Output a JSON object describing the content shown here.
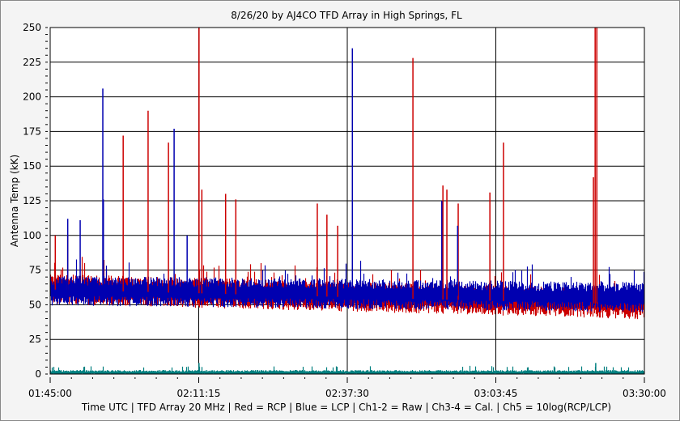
{
  "chart_data": {
    "type": "line",
    "title": "8/26/20  by  AJ4CO TFD Array  in  High Springs, FL",
    "ylabel": "Antenna Temp (kK)",
    "xlabel": "Time UTC | TFD Array 20 MHz | Red = RCP | Blue = LCP | Ch1-2 = Raw | Ch3-4 = Cal. | Ch5 = 10log(RCP/LCP)",
    "ylim": [
      0,
      250
    ],
    "yticks": [
      "0",
      "25",
      "50",
      "75",
      "100",
      "125",
      "150",
      "175",
      "200",
      "225",
      "250"
    ],
    "xlim_minutes": [
      0,
      105
    ],
    "xticks": [
      "01:45:00",
      "02:11:15",
      "02:37:30",
      "03:03:45",
      "03:30:00"
    ],
    "grid": true,
    "colors": {
      "rcp": "#cc0000",
      "lcp": "#0000b0",
      "ratio": "#008080"
    },
    "series": [
      {
        "name": "RCP",
        "color": "#cc0000",
        "baseline_start": 61,
        "baseline_end": 50,
        "spikes": [
          [
            0.9,
            100
          ],
          [
            3.1,
            100
          ],
          [
            12.9,
            172
          ],
          [
            17.3,
            190
          ],
          [
            20.9,
            167
          ],
          [
            26.3,
            250
          ],
          [
            26.8,
            133
          ],
          [
            31.0,
            130
          ],
          [
            32.8,
            126
          ],
          [
            47.2,
            123
          ],
          [
            48.9,
            115
          ],
          [
            50.8,
            107
          ],
          [
            64.1,
            228
          ],
          [
            69.4,
            136
          ],
          [
            70.1,
            133
          ],
          [
            72.1,
            123
          ],
          [
            77.7,
            131
          ],
          [
            80.1,
            167
          ],
          [
            96.0,
            142
          ],
          [
            96.3,
            250
          ],
          [
            96.6,
            250
          ]
        ]
      },
      {
        "name": "LCP",
        "color": "#0000b0",
        "baseline_start": 60,
        "baseline_end": 55,
        "spikes": [
          [
            3.1,
            112
          ],
          [
            5.3,
            111
          ],
          [
            9.3,
            206
          ],
          [
            9.4,
            126
          ],
          [
            21.9,
            177
          ],
          [
            24.2,
            100
          ],
          [
            53.4,
            235
          ],
          [
            69.2,
            125
          ],
          [
            72.0,
            107
          ]
        ]
      },
      {
        "name": "10log(RCP/LCP)",
        "color": "#008080",
        "baseline_start": 1,
        "baseline_end": 1,
        "spikes": [
          [
            26.3,
            8
          ],
          [
            96.4,
            8
          ]
        ]
      }
    ]
  }
}
